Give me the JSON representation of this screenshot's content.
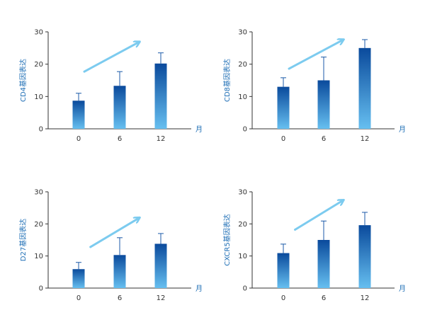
{
  "colors": {
    "bar_top": "#0a4a9c",
    "bar_bottom": "#66bff0",
    "arrow": "#7ccbef",
    "axis_label": "#1f6fb6",
    "axis": "#333333"
  },
  "chart_data": [
    {
      "type": "bar",
      "categories": [
        "0",
        "6",
        "12"
      ],
      "values": [
        8.7,
        13.3,
        20.2
      ],
      "errors": [
        2.3,
        4.4,
        3.3
      ],
      "ylabel": "CD4基因表达",
      "xlabel": "月",
      "ylim": [
        0,
        30
      ],
      "yticks": [
        0,
        10,
        20,
        30
      ],
      "trend_arrow": [
        [
          0,
          17.7
        ],
        [
          1.5,
          26.8
        ]
      ]
    },
    {
      "type": "bar",
      "categories": [
        "0",
        "6",
        "12"
      ],
      "values": [
        13.0,
        15.0,
        25.0
      ],
      "errors": [
        2.8,
        7.2,
        2.6
      ],
      "ylabel": "CD8基因表达",
      "xlabel": "月",
      "ylim": [
        0,
        30
      ],
      "yticks": [
        0,
        10,
        20,
        30
      ],
      "trend_arrow": [
        [
          0,
          18.6
        ],
        [
          1.5,
          27.5
        ]
      ]
    },
    {
      "type": "bar",
      "categories": [
        "0",
        "6",
        "12"
      ],
      "values": [
        5.9,
        10.3,
        13.8
      ],
      "errors": [
        2.1,
        5.4,
        3.2
      ],
      "ylabel": "D27基因表达",
      "xlabel": "月",
      "ylim": [
        0,
        30
      ],
      "yticks": [
        0,
        10,
        20,
        30
      ],
      "trend_arrow": [
        [
          0.15,
          12.8
        ],
        [
          1.5,
          21.8
        ]
      ]
    },
    {
      "type": "bar",
      "categories": [
        "0",
        "6",
        "12"
      ],
      "values": [
        10.9,
        15.0,
        19.6
      ],
      "errors": [
        2.8,
        5.9,
        4.0
      ],
      "ylabel": "CXCR5基因表达",
      "xlabel": "月",
      "ylim": [
        0,
        30
      ],
      "yticks": [
        0,
        10,
        20,
        30
      ],
      "trend_arrow": [
        [
          0.15,
          18.2
        ],
        [
          1.5,
          27.3
        ]
      ]
    }
  ]
}
